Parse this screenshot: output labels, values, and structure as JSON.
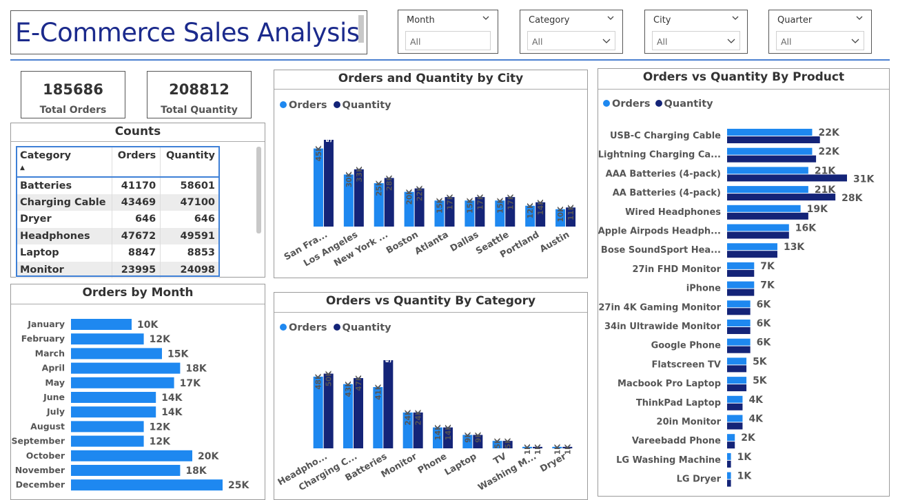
{
  "header": {
    "title": "E-Commerce Sales Analysis"
  },
  "slicers": [
    {
      "label": "Month",
      "value": "All"
    },
    {
      "label": "Category",
      "value": "All"
    },
    {
      "label": "City",
      "value": "All"
    },
    {
      "label": "Quarter",
      "value": "All"
    }
  ],
  "kpis": {
    "total_orders": {
      "value": "185686",
      "label": "Total Orders"
    },
    "total_quantity": {
      "value": "208812",
      "label": "Total Quantity"
    }
  },
  "colors": {
    "orders": "#1e88f0",
    "quantity": "#142478",
    "accent": "#4a7fd0"
  },
  "counts": {
    "title": "Counts",
    "columns": [
      "Category",
      "Orders",
      "Quantity"
    ],
    "rows": [
      [
        "Batteries",
        "41170",
        "58601"
      ],
      [
        "Charging Cable",
        "43469",
        "47100"
      ],
      [
        "Dryer",
        "646",
        "646"
      ],
      [
        "Headphones",
        "47672",
        "49591"
      ],
      [
        "Laptop",
        "8847",
        "8853"
      ],
      [
        "Monitor",
        "23995",
        "24098"
      ]
    ]
  },
  "legend": {
    "orders": "Orders",
    "quantity": "Quantity"
  },
  "chart_data": [
    {
      "id": "city",
      "type": "bar",
      "title": "Orders and Quantity by City",
      "categories": [
        "San Fra...",
        "Los Angeles",
        "New York ...",
        "Boston",
        "Atlanta",
        "Dallas",
        "Seattle",
        "Portland",
        "Austin"
      ],
      "series": [
        {
          "name": "Orders",
          "values": [
            45,
            30,
            25,
            20,
            15,
            15,
            15,
            12,
            10
          ],
          "labels": [
            "45K",
            "30K",
            "25K",
            "20K",
            "15K",
            "15K",
            "15K",
            "12K",
            "10K"
          ]
        },
        {
          "name": "Quantity",
          "values": [
            50,
            33,
            28,
            22,
            17,
            17,
            17,
            14,
            11
          ],
          "labels": [
            "50K",
            "33K",
            "28K",
            "22K",
            "17K",
            "17K",
            "17K",
            "14K",
            "11K"
          ]
        }
      ],
      "ylim": [
        0,
        50
      ]
    },
    {
      "id": "category",
      "type": "bar",
      "title": "Orders vs Quantity By Category",
      "categories": [
        "Headpho...",
        "Charging C...",
        "Batteries",
        "Monitor",
        "Phone",
        "Laptop",
        "TV",
        "Washing M...",
        "Dryer"
      ],
      "series": [
        {
          "name": "Orders",
          "values": [
            48,
            43,
            41,
            24,
            14,
            9,
            5,
            1,
            1
          ],
          "labels": [
            "48K",
            "43K",
            "41K",
            "24K",
            "14K",
            "9K",
            "5K",
            "1K",
            "1K"
          ]
        },
        {
          "name": "Quantity",
          "values": [
            50,
            47,
            59,
            24,
            14,
            9,
            5,
            1,
            1
          ],
          "labels": [
            "50K",
            "47K",
            "59K",
            "24K",
            "14K",
            "9K",
            "5K",
            "1K",
            "1K"
          ]
        }
      ],
      "ylim": [
        0,
        59
      ]
    },
    {
      "id": "month",
      "type": "bar",
      "title": "Orders by Month",
      "categories": [
        "January",
        "February",
        "March",
        "April",
        "May",
        "June",
        "July",
        "August",
        "September",
        "October",
        "November",
        "December"
      ],
      "series": [
        {
          "name": "Orders",
          "values": [
            10,
            12,
            15,
            18,
            17,
            14,
            14,
            12,
            12,
            20,
            18,
            25
          ],
          "labels": [
            "10K",
            "12K",
            "15K",
            "18K",
            "17K",
            "14K",
            "14K",
            "12K",
            "12K",
            "20K",
            "18K",
            "25K"
          ]
        }
      ],
      "xlim": [
        0,
        25
      ]
    },
    {
      "id": "product",
      "type": "bar",
      "title": "Orders vs Quantity By Product",
      "categories": [
        "USB-C Charging Cable",
        "Lightning Charging Ca...",
        "AAA Batteries (4-pack)",
        "AA Batteries (4-pack)",
        "Wired Headphones",
        "Apple Airpods Headph...",
        "Bose SoundSport Hea...",
        "27in FHD Monitor",
        "iPhone",
        "27in 4K Gaming Monitor",
        "34in Ultrawide Monitor",
        "Google Phone",
        "Flatscreen TV",
        "Macbook Pro Laptop",
        "ThinkPad Laptop",
        "20in Monitor",
        "Vareebadd Phone",
        "LG Washing Machine",
        "LG Dryer"
      ],
      "series": [
        {
          "name": "Orders",
          "values": [
            22,
            22,
            21,
            21,
            19,
            16,
            13,
            7,
            7,
            6,
            6,
            6,
            5,
            5,
            4,
            4,
            2,
            1,
            1
          ],
          "labels": [
            "22K",
            "22K",
            "21K",
            "21K",
            "19K",
            "16K",
            "13K",
            "7K",
            "7K",
            "6K",
            "6K",
            "6K",
            "5K",
            "5K",
            "4K",
            "4K",
            "2K",
            "1K",
            "1K"
          ]
        },
        {
          "name": "Quantity",
          "values": [
            24,
            23,
            31,
            28,
            21,
            16,
            13,
            7,
            7,
            6,
            6,
            6,
            5,
            5,
            4,
            4,
            2,
            1,
            1
          ],
          "labels": [
            "",
            "",
            "31K",
            "28K",
            "",
            "",
            "",
            "",
            "",
            "",
            "",
            "",
            "",
            "",
            "",
            "",
            "",
            "",
            ""
          ]
        }
      ],
      "xlim": [
        0,
        31
      ]
    }
  ]
}
